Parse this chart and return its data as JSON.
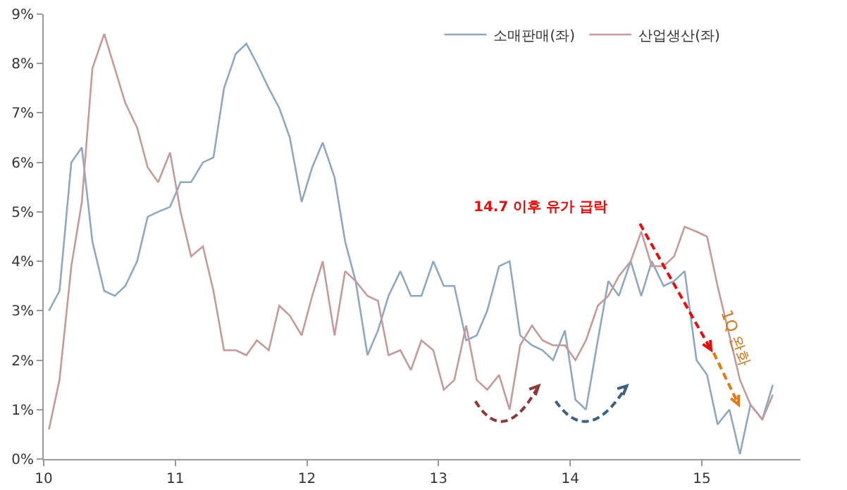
{
  "chart_data": {
    "type": "line",
    "x": [
      10.04,
      10.12,
      10.21,
      10.29,
      10.37,
      10.46,
      10.54,
      10.62,
      10.71,
      10.79,
      10.87,
      10.96,
      11.04,
      11.12,
      11.21,
      11.29,
      11.37,
      11.46,
      11.54,
      11.62,
      11.71,
      11.79,
      11.87,
      11.96,
      12.04,
      12.12,
      12.21,
      12.29,
      12.37,
      12.46,
      12.54,
      12.62,
      12.71,
      12.79,
      12.87,
      12.96,
      13.04,
      13.12,
      13.21,
      13.29,
      13.37,
      13.46,
      13.54,
      13.62,
      13.71,
      13.79,
      13.87,
      13.96,
      14.04,
      14.12,
      14.21,
      14.29,
      14.37,
      14.46,
      14.54,
      14.62,
      14.71,
      14.79,
      14.87,
      14.96,
      15.04,
      15.12,
      15.21,
      15.29,
      15.37,
      15.46,
      15.54
    ],
    "series": [
      {
        "name": "소매판매(좌)",
        "color": "#8fa8c0",
        "values": [
          3.0,
          3.4,
          6.0,
          6.3,
          4.4,
          3.4,
          3.3,
          3.5,
          4.0,
          4.9,
          5.0,
          5.1,
          5.6,
          5.6,
          6.0,
          6.1,
          7.5,
          8.2,
          8.4,
          8.0,
          7.5,
          7.1,
          6.5,
          5.2,
          5.9,
          6.4,
          5.7,
          4.4,
          3.6,
          2.1,
          2.6,
          3.3,
          3.8,
          3.3,
          3.3,
          4.0,
          3.5,
          3.5,
          2.4,
          2.5,
          3.0,
          3.9,
          4.0,
          2.5,
          2.3,
          2.2,
          2.0,
          2.6,
          1.2,
          1.0,
          2.4,
          3.6,
          3.3,
          4.0,
          3.3,
          4.0,
          3.5,
          3.6,
          3.8,
          2.0,
          1.7,
          0.7,
          1.0,
          0.1,
          1.1,
          0.8,
          1.5
        ]
      },
      {
        "name": "산업생산(좌)",
        "color": "#c49a9a",
        "values": [
          0.6,
          1.6,
          3.9,
          5.2,
          7.9,
          8.6,
          7.9,
          7.2,
          6.7,
          5.9,
          5.6,
          6.2,
          5.0,
          4.1,
          4.3,
          3.4,
          2.2,
          2.2,
          2.1,
          2.4,
          2.2,
          3.1,
          2.9,
          2.5,
          3.3,
          4.0,
          2.5,
          3.8,
          3.6,
          3.3,
          3.2,
          2.1,
          2.2,
          1.8,
          2.4,
          2.2,
          1.4,
          1.6,
          2.7,
          1.6,
          1.4,
          1.7,
          1.0,
          2.3,
          2.7,
          2.4,
          2.3,
          2.3,
          2.0,
          2.4,
          3.1,
          3.3,
          3.7,
          4.0,
          4.6,
          3.9,
          3.9,
          4.1,
          4.7,
          4.6,
          4.5,
          3.5,
          2.5,
          1.6,
          1.1,
          0.8,
          1.3
        ]
      }
    ],
    "xlim": [
      10,
      15.75
    ],
    "xticks": [
      10,
      11,
      12,
      13,
      14,
      15
    ],
    "ylim": [
      0,
      9
    ],
    "yticks": [
      {
        "value": 0,
        "label": "0%"
      },
      {
        "value": 1,
        "label": "1%"
      },
      {
        "value": 2,
        "label": "2%"
      },
      {
        "value": 3,
        "label": "3%"
      },
      {
        "value": 4,
        "label": "4%"
      },
      {
        "value": 5,
        "label": "5%"
      },
      {
        "value": 6,
        "label": "6%"
      },
      {
        "value": 7,
        "label": "7%"
      },
      {
        "value": 8,
        "label": "8%"
      },
      {
        "value": 9,
        "label": "9%"
      }
    ],
    "annotations": [
      "14.7 이후 유가 급락",
      {
        "text": "1Q 완화",
        "x": 15.25,
        "y": 2.45
      }
    ],
    "grid": false,
    "legend": "top right",
    "marker": "none",
    "line_style": "solid"
  }
}
